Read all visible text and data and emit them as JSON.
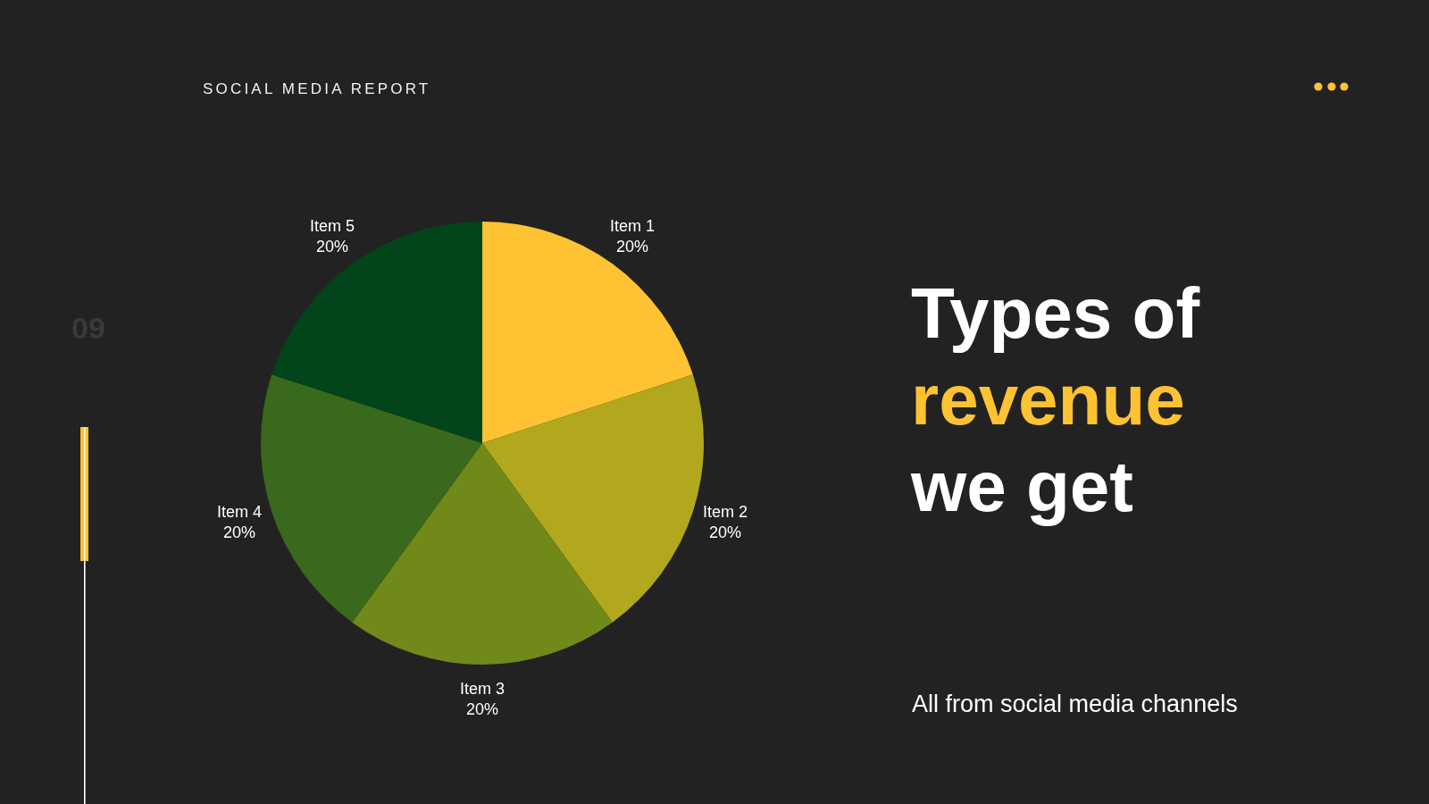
{
  "chart_data": {
    "type": "pie",
    "title": "Types of revenue we get",
    "subtitle": "SOCIAL MEDIA REPORT",
    "categories": [
      "Item 1",
      "Item 2",
      "Item 3",
      "Item 4",
      "Item 5"
    ],
    "values": [
      20,
      20,
      20,
      20,
      20
    ],
    "colors": [
      "#ffc233",
      "#b2a81e",
      "#718919",
      "#38691c",
      "#02451b"
    ],
    "value_labels": [
      "20%",
      "20%",
      "20%",
      "20%",
      "20%"
    ],
    "annotations": [
      "09",
      "All from social media channels"
    ]
  }
}
